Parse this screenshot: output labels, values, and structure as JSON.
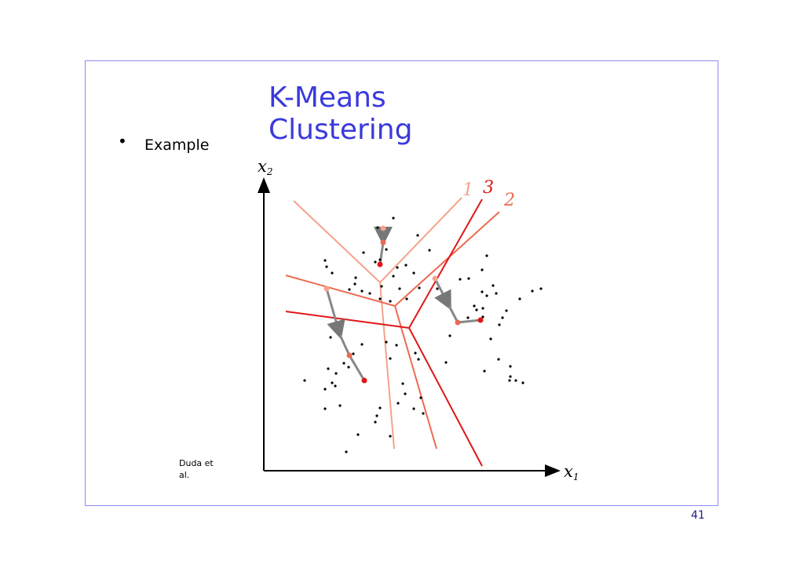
{
  "slide": {
    "title": "K-Means Clustering",
    "bullet_text": "Example",
    "credit": "Duda et al.",
    "page_number": "41"
  },
  "figure": {
    "x_axis_label": "x",
    "x_axis_sub": "1",
    "y_axis_label": "x",
    "y_axis_sub": "2",
    "boundary_labels": [
      "1",
      "3",
      "2"
    ],
    "colors": {
      "iteration_1": "#f4a28c",
      "iteration_2": "#ec6a52",
      "iteration_3": "#e01616",
      "path": "#888888",
      "points": "#000000"
    }
  }
}
